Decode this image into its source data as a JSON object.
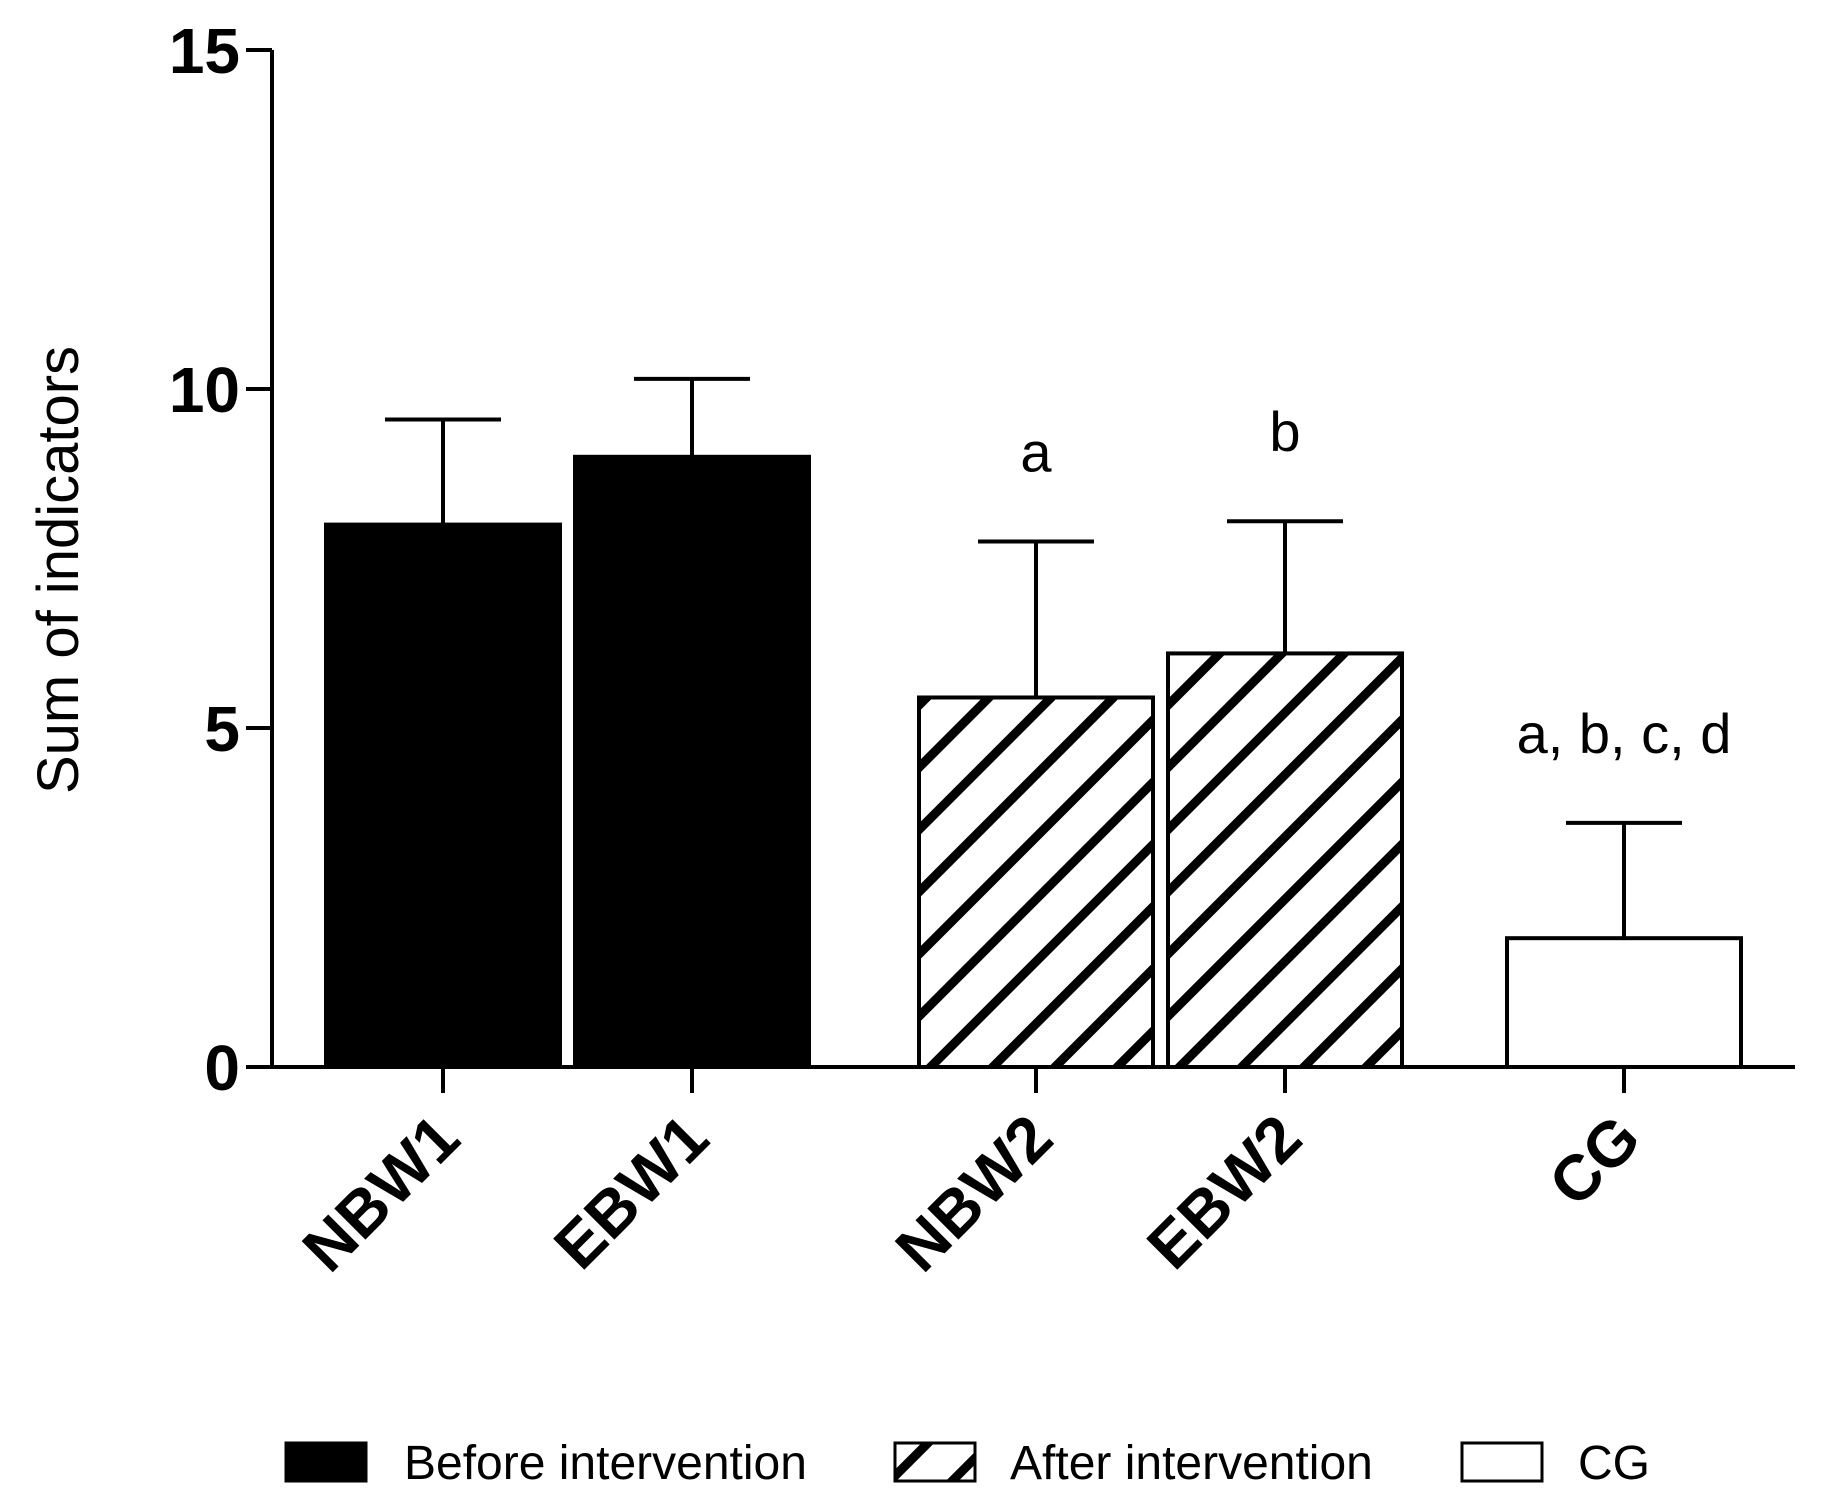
{
  "chart_data": {
    "type": "bar",
    "title": "",
    "xlabel": "",
    "ylabel": "Sum of indicators",
    "ylim": [
      0,
      15
    ],
    "yticks": [
      0,
      5,
      10,
      15
    ],
    "categories": [
      "NBW1",
      "EBW1",
      "NBW2",
      "EBW2",
      "CG"
    ],
    "values": [
      8.0,
      9.0,
      5.45,
      6.1,
      1.9
    ],
    "errors": [
      1.55,
      1.15,
      2.3,
      1.95,
      1.7
    ],
    "groups": [
      "before",
      "before",
      "after",
      "after",
      "cg"
    ],
    "annotations": [
      "",
      "",
      "a",
      "b",
      "a, b, c, d"
    ],
    "legend": [
      {
        "key": "before",
        "label": "Before intervention"
      },
      {
        "key": "after",
        "label": "After intervention"
      },
      {
        "key": "cg",
        "label": "CG"
      }
    ],
    "legend_position": "bottom",
    "colors": {
      "before": "#000000",
      "after_stripe": "#000000",
      "background": "#ffffff"
    }
  }
}
